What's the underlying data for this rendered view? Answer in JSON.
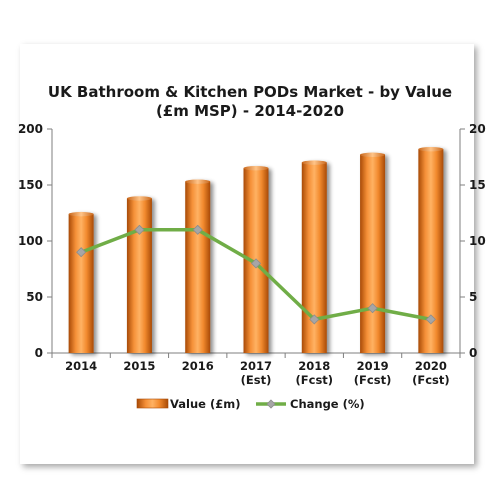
{
  "chart_data": {
    "type": "bar",
    "title_lines": [
      "UK Bathroom & Kitchen PODs Market - by Value",
      "(£m MSP) - 2014-2020"
    ],
    "categories": [
      [
        "2014"
      ],
      [
        "2015"
      ],
      [
        "2016"
      ],
      [
        "2017",
        "(Est)"
      ],
      [
        "2018",
        "(Fcst)"
      ],
      [
        "2019",
        "(Fcst)"
      ],
      [
        "2020",
        "(Fcst)"
      ]
    ],
    "series": [
      {
        "name": "Value (£m)",
        "type": "bar",
        "axis": "left",
        "color": "#f28a2e",
        "values": [
          124,
          138,
          153,
          165,
          170,
          177,
          182
        ]
      },
      {
        "name": "Change (%)",
        "type": "line",
        "axis": "right",
        "color": "#70ad47",
        "marker_color": "#a6a6a6",
        "values": [
          9,
          11,
          11,
          8,
          3,
          4,
          3
        ]
      }
    ],
    "y_left": {
      "min": 0,
      "max": 200,
      "ticks": [
        0,
        50,
        100,
        150,
        200
      ]
    },
    "y_right": {
      "min": 0,
      "max": 20,
      "ticks": [
        0,
        5,
        10,
        15,
        20
      ]
    },
    "grid": false,
    "legend_position": "bottom"
  }
}
